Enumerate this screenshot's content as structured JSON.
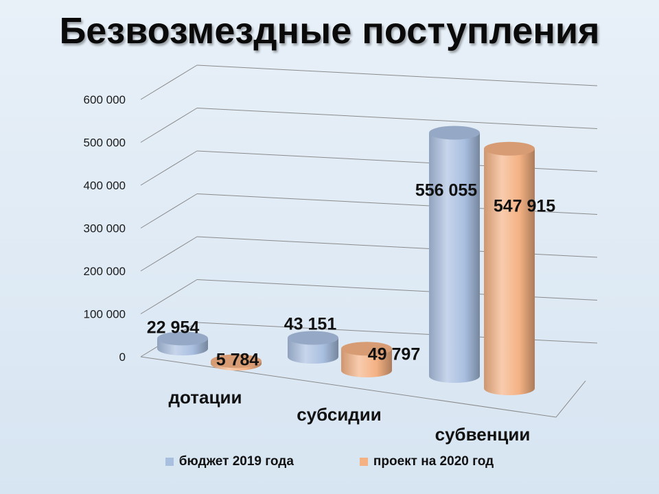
{
  "title": "Безвозмездные поступления",
  "legend": {
    "items": [
      {
        "label": "бюджет 2019 года",
        "color": "#a9bfe0"
      },
      {
        "label": "проект на 2020 год",
        "color": "#f4b183"
      }
    ]
  },
  "chart_data": {
    "type": "bar",
    "style": "3d-cylinder",
    "title": "Безвозмездные поступления",
    "categories": [
      "дотации",
      "субсидии",
      "субвенции"
    ],
    "series": [
      {
        "name": "бюджет 2019 года",
        "values": [
          22954,
          43151,
          556055
        ],
        "labels": [
          "22 954",
          "43 151",
          "556 055"
        ],
        "color": "#a9bfe0"
      },
      {
        "name": "проект на 2020 год",
        "values": [
          5784,
          49797,
          547915
        ],
        "labels": [
          "5 784",
          "49 797",
          "547 915"
        ],
        "color": "#f4b183"
      }
    ],
    "yticks": [
      "0",
      "100 000",
      "200 000",
      "300 000",
      "400 000",
      "500 000",
      "600 000"
    ],
    "ylim": [
      0,
      600000
    ],
    "grid": true,
    "legend_position": "bottom"
  }
}
